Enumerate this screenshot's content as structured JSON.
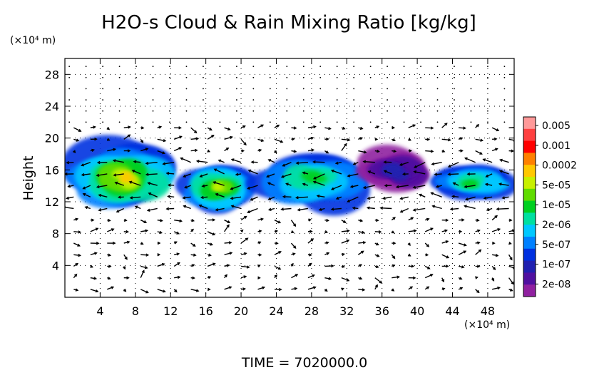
{
  "chart_data": {
    "type": "heatmap",
    "title": "H2O-s Cloud & Rain Mixing Ratio [kg/kg]",
    "ylabel": "Height",
    "y_unit_label": "(×10⁴ m)",
    "x_unit_label": "(×10⁴ m)",
    "footer": "TIME = 7020000.0",
    "xlim": [
      0,
      51
    ],
    "ylim": [
      0,
      30
    ],
    "x_ticks": [
      4,
      8,
      12,
      16,
      20,
      24,
      28,
      32,
      36,
      40,
      44,
      48
    ],
    "y_ticks": [
      4,
      8,
      12,
      16,
      20,
      24,
      28
    ],
    "grid": true,
    "overlay": "wind vectors (arrows)",
    "colorbar": {
      "labels": [
        "0.005",
        "0.001",
        "0.0002",
        "5e-05",
        "1e-05",
        "2e-06",
        "5e-07",
        "1e-07",
        "2e-08"
      ],
      "colors": [
        "#ff9999",
        "#ff4040",
        "#ff0000",
        "#ff8000",
        "#ffc800",
        "#c8f000",
        "#60dc00",
        "#00d020",
        "#00e0a0",
        "#00c8ff",
        "#0080ff",
        "#0030e0",
        "#2020b0",
        "#5010a0",
        "#9020a0"
      ]
    },
    "cloud_regions": [
      {
        "x": [
          1,
          13
        ],
        "y": [
          10.5,
          19.5
        ],
        "peak": "0.0002"
      },
      {
        "x": [
          13,
          22
        ],
        "y": [
          10.5,
          17
        ],
        "peak": "5e-05"
      },
      {
        "x": [
          22,
          34
        ],
        "y": [
          11,
          19
        ],
        "peak": "1e-05"
      },
      {
        "x": [
          34,
          42
        ],
        "y": [
          13,
          18.5
        ],
        "peak": "1e-07"
      },
      {
        "x": [
          42,
          51
        ],
        "y": [
          12,
          17
        ],
        "peak": "1e-05"
      }
    ]
  }
}
